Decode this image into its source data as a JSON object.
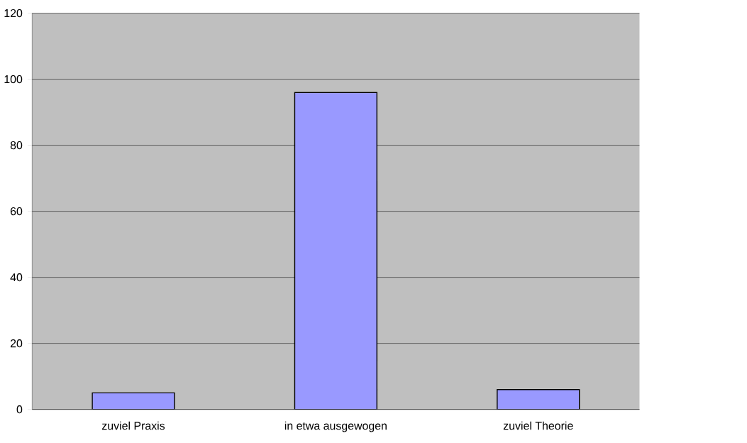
{
  "chart_data": {
    "type": "bar",
    "categories": [
      "zuviel Praxis",
      "in etwa ausgewogen",
      "zuviel Theorie"
    ],
    "values": [
      5,
      96,
      6
    ],
    "color": "#9999ff",
    "ylim": [
      0,
      120
    ],
    "yticks": [
      0,
      20,
      40,
      60,
      80,
      100,
      120
    ],
    "grid": "y"
  }
}
